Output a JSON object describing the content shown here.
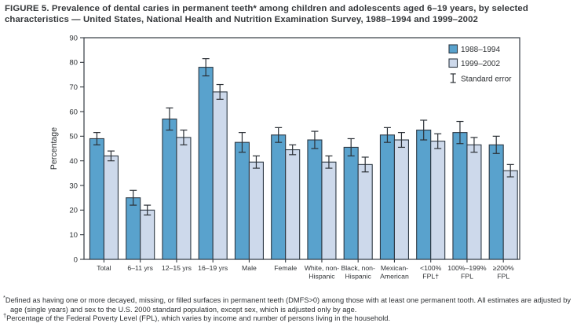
{
  "figure": {
    "title_lines": [
      "FIGURE 5. Prevalence of dental caries in permanent teeth* among children and adolescents aged 6–19 years, by selected",
      "characteristics — United States, National Health and Nutrition Examination Survey, 1988–1994 and 1999–2002"
    ],
    "footnotes": [
      {
        "marker": "*",
        "text": "Defined as having one or more decayed, missing, or filled surfaces in permanent teeth (DMFS>0) among those with at least one permanent tooth. All estimates are adjusted by age (single years) and sex to the U.S. 2000 standard population, except sex, which is adjusted only by age."
      },
      {
        "marker": "†",
        "text": "Percentage of the Federal Poverty Level (FPL), which varies by income and number of persons living in the household."
      }
    ]
  },
  "colors": {
    "axis": "#343b42",
    "bar_border": "#2e3944",
    "error_bar": "#2b3036",
    "tick_text": "#2e3134",
    "title_text": "#35383b"
  },
  "chart_data": {
    "type": "bar",
    "title": "",
    "xlabel": "",
    "ylabel": "Percentage",
    "ylim": [
      0,
      90
    ],
    "ytick_step": 10,
    "grid": false,
    "legend_position": "top-right-inside",
    "error_bar_legend_label": "Standard error",
    "categories": [
      [
        "Total"
      ],
      [
        "6–11 yrs"
      ],
      [
        "12–15 yrs"
      ],
      [
        "16–19 yrs"
      ],
      [
        "Male"
      ],
      [
        "Female"
      ],
      [
        "White, non-",
        "Hispanic"
      ],
      [
        "Black, non-",
        "Hispanic"
      ],
      [
        "Mexican-",
        "American"
      ],
      [
        "<100%",
        "FPL†"
      ],
      [
        "100%–199%",
        "FPL"
      ],
      [
        "≥200%",
        "FPL"
      ]
    ],
    "series": [
      {
        "name": "1988–1994",
        "color": "#59a2cd",
        "values": [
          49,
          25,
          57,
          78,
          47.5,
          50.5,
          48.5,
          45.5,
          50.5,
          52.5,
          51.5,
          46.5
        ],
        "standard_errors": [
          2.5,
          3,
          4.5,
          3.5,
          4,
          3,
          3.5,
          3.5,
          3,
          4,
          4.5,
          3.5
        ]
      },
      {
        "name": "1999–2002",
        "color": "#cdd9eb",
        "values": [
          42,
          20,
          49.5,
          68,
          39.5,
          44.5,
          39.5,
          38.5,
          48.5,
          48,
          46.5,
          36
        ],
        "standard_errors": [
          2,
          2,
          3,
          3,
          2.5,
          2,
          2.5,
          3,
          3,
          3,
          3,
          2.5
        ]
      }
    ]
  }
}
